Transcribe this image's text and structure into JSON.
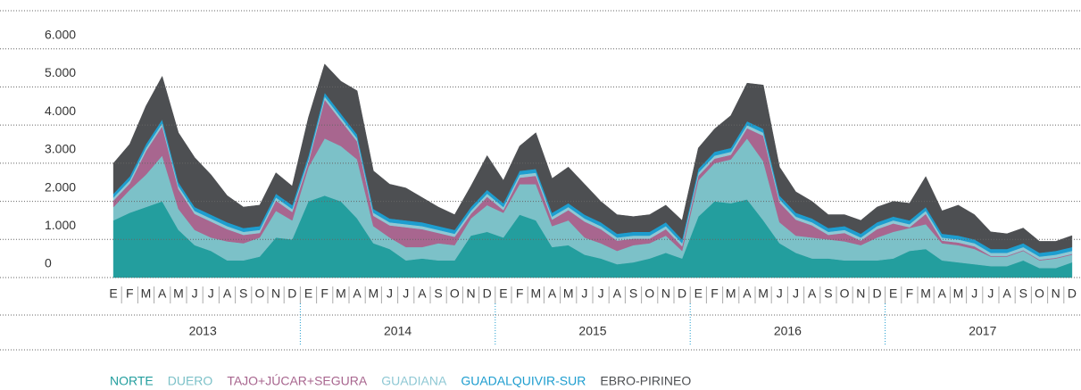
{
  "chart_data": {
    "type": "stacked_area",
    "categories": [
      "E",
      "F",
      "M",
      "A",
      "M",
      "J",
      "J",
      "A",
      "S",
      "O",
      "N",
      "D",
      "E",
      "F",
      "M",
      "A",
      "M",
      "J",
      "J",
      "A",
      "S",
      "O",
      "N",
      "D",
      "E",
      "F",
      "M",
      "A",
      "M",
      "J",
      "J",
      "A",
      "S",
      "O",
      "N",
      "D",
      "E",
      "F",
      "M",
      "A",
      "M",
      "J",
      "J",
      "A",
      "S",
      "O",
      "N",
      "D",
      "E",
      "F",
      "M",
      "A",
      "M",
      "J",
      "J",
      "A",
      "S",
      "O",
      "N",
      "D"
    ],
    "years": [
      "2013",
      "2014",
      "2015",
      "2016",
      "2017"
    ],
    "ylim": [
      0,
      7000
    ],
    "yticks": [
      0,
      {
        "value": 1000,
        "label": "1.000"
      },
      {
        "value": 2000,
        "label": "2.000"
      },
      {
        "value": 3000,
        "label": "3.000"
      },
      {
        "value": 4000,
        "label": "4.000"
      },
      {
        "value": 5000,
        "label": "5.000"
      },
      {
        "value": 6000,
        "label": "6.000"
      }
    ],
    "grid": true,
    "series": [
      {
        "name": "NORTE",
        "color": "#239e9e",
        "values": [
          1500,
          1700,
          1850,
          2000,
          1250,
          850,
          700,
          450,
          450,
          550,
          1050,
          1000,
          2000,
          2150,
          2000,
          1550,
          900,
          750,
          450,
          500,
          450,
          450,
          1100,
          1200,
          1050,
          1650,
          1500,
          800,
          850,
          600,
          500,
          350,
          400,
          500,
          650,
          500,
          1600,
          2000,
          1950,
          2050,
          1500,
          900,
          650,
          500,
          500,
          450,
          450,
          450,
          500,
          700,
          750,
          450,
          400,
          350,
          300,
          300,
          450,
          250,
          250,
          400
        ]
      },
      {
        "name": "DUERO",
        "color": "#7cc1c8",
        "values": [
          350,
          600,
          850,
          1200,
          550,
          400,
          350,
          500,
          450,
          500,
          700,
          500,
          900,
          1500,
          1450,
          1550,
          450,
          300,
          350,
          300,
          450,
          400,
          450,
          700,
          650,
          800,
          950,
          550,
          650,
          450,
          400,
          350,
          450,
          400,
          450,
          200,
          950,
          1000,
          1150,
          1600,
          1550,
          550,
          450,
          550,
          500,
          500,
          400,
          600,
          700,
          600,
          650,
          450,
          450,
          400,
          250,
          250,
          250,
          200,
          250,
          200
        ]
      },
      {
        "name": "TAJO+JÚCAR+SEGURA",
        "color": "#a8668f",
        "values": [
          170,
          170,
          620,
          770,
          520,
          420,
          420,
          320,
          220,
          120,
          270,
          220,
          120,
          1020,
          670,
          470,
          270,
          320,
          520,
          470,
          270,
          220,
          120,
          220,
          70,
          170,
          220,
          170,
          270,
          420,
          370,
          270,
          170,
          120,
          170,
          120,
          120,
          120,
          120,
          270,
          670,
          520,
          420,
          320,
          120,
          220,
          120,
          220,
          220,
          20,
          270,
          70,
          70,
          70,
          20,
          20,
          20,
          20,
          20,
          20
        ]
      },
      {
        "name": "GUADIANA",
        "color": "#8fc8d4",
        "values": [
          80,
          80,
          80,
          80,
          80,
          80,
          80,
          80,
          80,
          80,
          80,
          80,
          80,
          80,
          80,
          80,
          80,
          80,
          80,
          80,
          80,
          80,
          80,
          80,
          80,
          80,
          80,
          80,
          80,
          80,
          80,
          80,
          80,
          80,
          80,
          80,
          80,
          80,
          80,
          80,
          80,
          80,
          80,
          80,
          80,
          80,
          80,
          80,
          80,
          80,
          80,
          80,
          80,
          80,
          80,
          80,
          80,
          80,
          80,
          80
        ]
      },
      {
        "name": "GUADALQUIVIR-SUR",
        "color": "#1d9dcf",
        "values": [
          100,
          100,
          100,
          100,
          100,
          100,
          100,
          100,
          100,
          100,
          100,
          100,
          100,
          100,
          100,
          100,
          100,
          100,
          100,
          100,
          100,
          100,
          100,
          100,
          100,
          100,
          100,
          100,
          100,
          100,
          100,
          100,
          100,
          100,
          100,
          100,
          100,
          100,
          100,
          100,
          100,
          100,
          100,
          100,
          100,
          100,
          100,
          100,
          100,
          100,
          100,
          100,
          100,
          100,
          100,
          100,
          100,
          100,
          100,
          100
        ]
      },
      {
        "name": "EBRO-PIRINEO",
        "color": "#4d4f52",
        "values": [
          800,
          850,
          1000,
          1130,
          1300,
          1300,
          1050,
          700,
          550,
          550,
          550,
          500,
          1000,
          750,
          850,
          1150,
          1000,
          900,
          850,
          650,
          500,
          400,
          550,
          900,
          600,
          650,
          950,
          900,
          950,
          800,
          550,
          500,
          400,
          450,
          450,
          500,
          550,
          600,
          850,
          1000,
          1150,
          750,
          550,
          450,
          350,
          300,
          350,
          400,
          400,
          450,
          800,
          600,
          800,
          650,
          450,
          400,
          400,
          300,
          250,
          300
        ]
      }
    ]
  }
}
